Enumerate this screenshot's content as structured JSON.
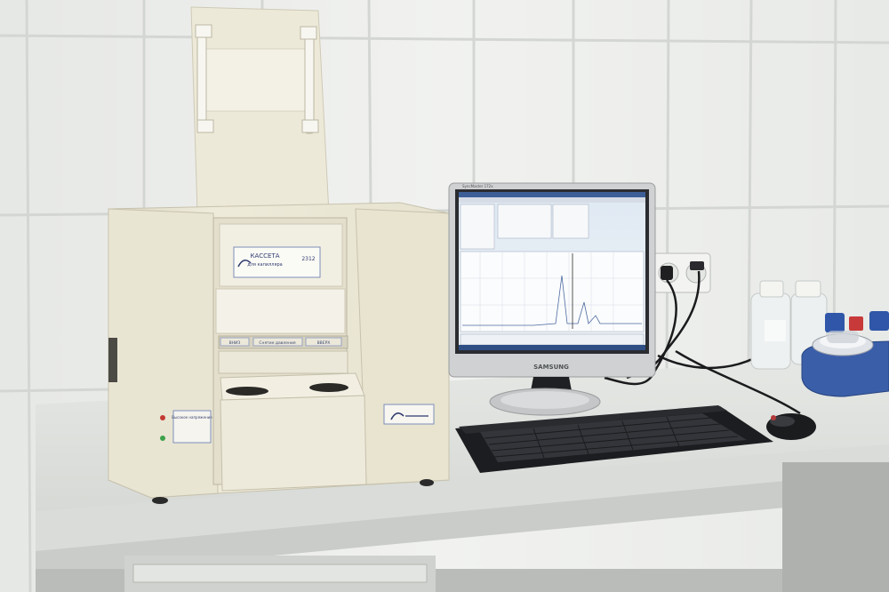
{
  "scene": {
    "cassette_label": {
      "title": "КАССЕТА",
      "subtitle": "для капилляра",
      "number": "2312"
    },
    "cassette_buttons": [
      "ВНИЗ",
      "Снятие давления",
      "ВВЕРХ"
    ],
    "panel_field_label": "Высокое напряжение",
    "monitor": {
      "brand": "SAMSUNG",
      "model": "SyncMaster 172x"
    },
    "colors": {
      "wall_tile": "#f2f3f1",
      "grout": "#d6d8d5",
      "instrument_body": "#ece8d6",
      "desk_top": "#dfe1dd",
      "monitor_bezel": "#c8cacb",
      "keyboard": "#1e1f22",
      "vortex_blue": "#3a5da8"
    },
    "icons": [
      "power-socket-icon",
      "indicator-led-icon",
      "logo-icon"
    ]
  }
}
